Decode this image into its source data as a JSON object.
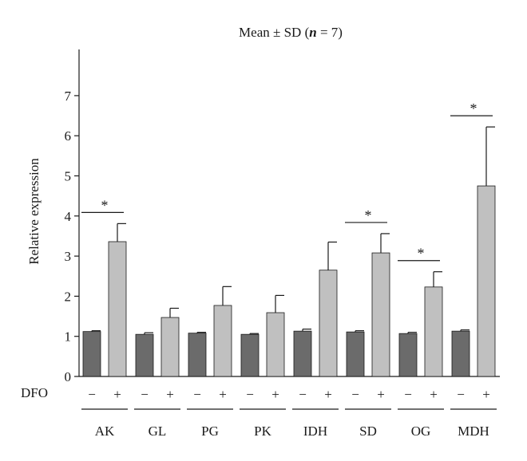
{
  "chart_data": {
    "type": "bar",
    "title": "Mean ± SD (n = 7)",
    "title_parts": {
      "prefix": "Mean ± SD (",
      "italic": "n",
      "suffix": " = 7)"
    },
    "ylabel": "Relative expression",
    "xlabel": "",
    "ylim": [
      0,
      7
    ],
    "yticks": [
      0,
      1,
      2,
      3,
      4,
      5,
      6,
      7
    ],
    "treatment_label": "DFO",
    "treatment_levels": [
      "−",
      "+"
    ],
    "categories": [
      "AK",
      "GL",
      "PG",
      "PK",
      "IDH",
      "SD",
      "OG",
      "MDH"
    ],
    "series": [
      {
        "values": [
          1.12,
          1.05,
          1.08,
          1.05,
          1.13,
          1.11,
          1.07,
          1.13
        ],
        "sd": [
          0.02,
          0.04,
          0.02,
          0.02,
          0.05,
          0.03,
          0.03,
          0.03
        ],
        "color": "#6b6b6b"
      },
      {
        "values": [
          3.36,
          1.47,
          1.77,
          1.59,
          2.65,
          3.08,
          2.23,
          4.75
        ],
        "sd": [
          0.45,
          0.23,
          0.47,
          0.43,
          0.7,
          0.48,
          0.38,
          1.47
        ],
        "color": "#c0c0c0"
      }
    ],
    "significance": [
      {
        "category": "AK",
        "label": "*"
      },
      {
        "category": "SD",
        "label": "*"
      },
      {
        "category": "OG",
        "label": "*"
      },
      {
        "category": "MDH",
        "label": "*"
      }
    ],
    "grid": false
  }
}
